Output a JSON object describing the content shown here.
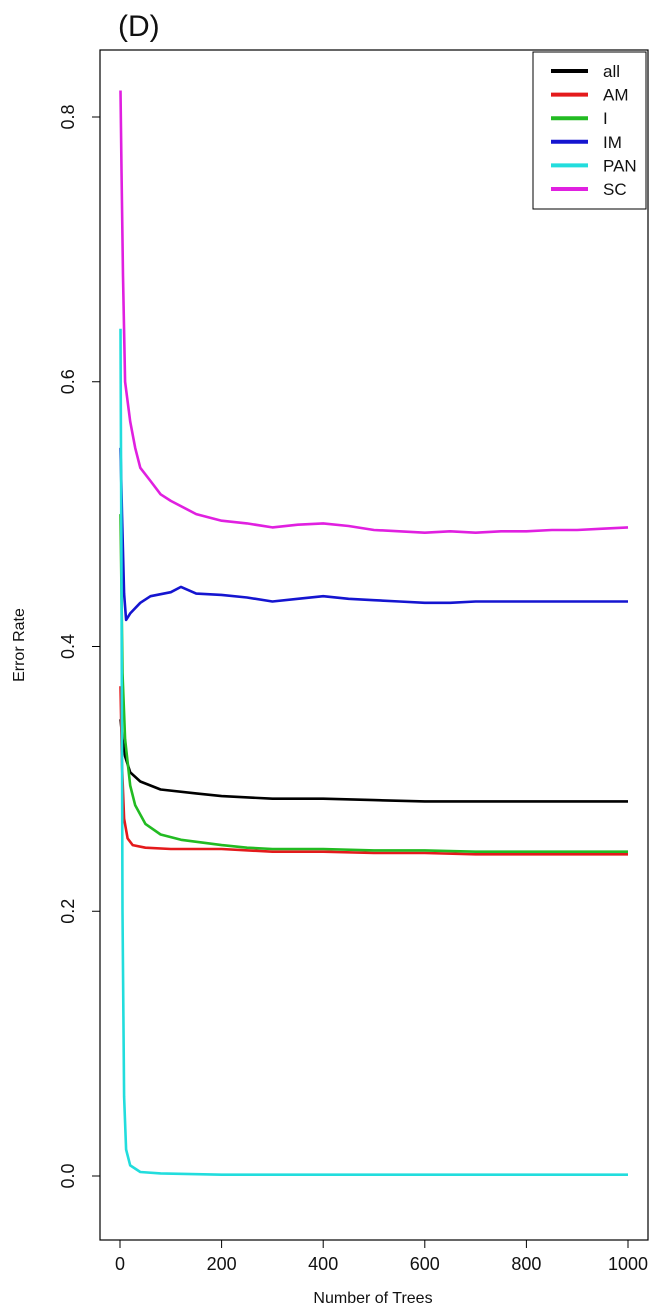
{
  "panel_label": "(D)",
  "chart_data": {
    "type": "line",
    "title": "",
    "xlabel": "Number of Trees",
    "ylabel": "Error Rate",
    "xlim": [
      0,
      1000
    ],
    "ylim": [
      0.0,
      0.8
    ],
    "xticks": [
      0,
      200,
      400,
      600,
      800,
      1000
    ],
    "yticks": [
      0.0,
      0.2,
      0.4,
      0.6,
      0.8
    ],
    "grid": false,
    "legend_position": "top-right",
    "series": [
      {
        "name": "all",
        "color": "#000000",
        "points": [
          [
            1,
            0.345
          ],
          [
            5,
            0.33
          ],
          [
            10,
            0.317
          ],
          [
            20,
            0.305
          ],
          [
            40,
            0.298
          ],
          [
            80,
            0.292
          ],
          [
            150,
            0.289
          ],
          [
            200,
            0.287
          ],
          [
            300,
            0.285
          ],
          [
            400,
            0.285
          ],
          [
            500,
            0.284
          ],
          [
            600,
            0.283
          ],
          [
            700,
            0.283
          ],
          [
            800,
            0.283
          ],
          [
            900,
            0.283
          ],
          [
            1000,
            0.283
          ]
        ]
      },
      {
        "name": "AM",
        "color": "#e41a1c",
        "points": [
          [
            1,
            0.37
          ],
          [
            4,
            0.31
          ],
          [
            8,
            0.27
          ],
          [
            15,
            0.255
          ],
          [
            25,
            0.25
          ],
          [
            50,
            0.248
          ],
          [
            100,
            0.247
          ],
          [
            200,
            0.247
          ],
          [
            300,
            0.245
          ],
          [
            400,
            0.245
          ],
          [
            500,
            0.244
          ],
          [
            600,
            0.244
          ],
          [
            700,
            0.243
          ],
          [
            800,
            0.243
          ],
          [
            900,
            0.243
          ],
          [
            1000,
            0.243
          ]
        ]
      },
      {
        "name": "I",
        "color": "#22bb22",
        "points": [
          [
            1,
            0.5
          ],
          [
            5,
            0.38
          ],
          [
            10,
            0.33
          ],
          [
            20,
            0.295
          ],
          [
            30,
            0.28
          ],
          [
            50,
            0.266
          ],
          [
            80,
            0.258
          ],
          [
            120,
            0.254
          ],
          [
            200,
            0.25
          ],
          [
            250,
            0.248
          ],
          [
            300,
            0.247
          ],
          [
            400,
            0.247
          ],
          [
            500,
            0.246
          ],
          [
            600,
            0.246
          ],
          [
            700,
            0.245
          ],
          [
            800,
            0.245
          ],
          [
            900,
            0.245
          ],
          [
            1000,
            0.245
          ]
        ]
      },
      {
        "name": "IM",
        "color": "#1515d0",
        "points": [
          [
            1,
            0.55
          ],
          [
            4,
            0.5
          ],
          [
            8,
            0.44
          ],
          [
            12,
            0.42
          ],
          [
            20,
            0.425
          ],
          [
            40,
            0.433
          ],
          [
            60,
            0.438
          ],
          [
            100,
            0.441
          ],
          [
            120,
            0.445
          ],
          [
            150,
            0.44
          ],
          [
            200,
            0.439
          ],
          [
            250,
            0.437
          ],
          [
            300,
            0.434
          ],
          [
            350,
            0.436
          ],
          [
            400,
            0.438
          ],
          [
            450,
            0.436
          ],
          [
            500,
            0.435
          ],
          [
            550,
            0.434
          ],
          [
            600,
            0.433
          ],
          [
            650,
            0.433
          ],
          [
            700,
            0.434
          ],
          [
            800,
            0.434
          ],
          [
            900,
            0.434
          ],
          [
            1000,
            0.434
          ]
        ]
      },
      {
        "name": "PAN",
        "color": "#22dddd",
        "points": [
          [
            1,
            0.64
          ],
          [
            3,
            0.45
          ],
          [
            5,
            0.2
          ],
          [
            8,
            0.06
          ],
          [
            12,
            0.02
          ],
          [
            20,
            0.008
          ],
          [
            40,
            0.003
          ],
          [
            80,
            0.002
          ],
          [
            200,
            0.001
          ],
          [
            400,
            0.001
          ],
          [
            600,
            0.001
          ],
          [
            800,
            0.001
          ],
          [
            1000,
            0.001
          ]
        ]
      },
      {
        "name": "SC",
        "color": "#e020e0",
        "points": [
          [
            1,
            0.82
          ],
          [
            3,
            0.76
          ],
          [
            6,
            0.68
          ],
          [
            10,
            0.6
          ],
          [
            20,
            0.57
          ],
          [
            30,
            0.55
          ],
          [
            40,
            0.535
          ],
          [
            60,
            0.525
          ],
          [
            80,
            0.515
          ],
          [
            100,
            0.51
          ],
          [
            150,
            0.5
          ],
          [
            200,
            0.495
          ],
          [
            250,
            0.493
          ],
          [
            300,
            0.49
          ],
          [
            350,
            0.492
          ],
          [
            400,
            0.493
          ],
          [
            450,
            0.491
          ],
          [
            500,
            0.488
          ],
          [
            550,
            0.487
          ],
          [
            600,
            0.486
          ],
          [
            650,
            0.487
          ],
          [
            700,
            0.486
          ],
          [
            750,
            0.487
          ],
          [
            800,
            0.487
          ],
          [
            850,
            0.488
          ],
          [
            900,
            0.488
          ],
          [
            950,
            0.489
          ],
          [
            1000,
            0.49
          ]
        ]
      }
    ]
  }
}
